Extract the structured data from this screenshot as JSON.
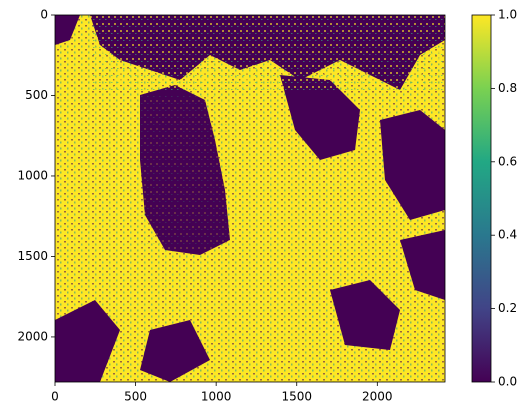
{
  "chart_data": {
    "type": "image",
    "xlim": [
      0,
      2420
    ],
    "xticks": [
      0,
      500,
      1000,
      1500,
      2000
    ],
    "ylim": [
      2280,
      0
    ],
    "yticks": [
      0,
      500,
      1000,
      1500,
      2000
    ],
    "colormap": "viridis",
    "colorbar": {
      "lim": [
        0,
        1
      ],
      "ticks": [
        {
          "value": 0,
          "label": "0.0"
        },
        {
          "value": 0.2,
          "label": "0.2"
        },
        {
          "value": 0.4,
          "label": "0.4"
        },
        {
          "value": 0.6,
          "label": "0.6"
        },
        {
          "value": 0.8,
          "label": "0.8"
        },
        {
          "value": 1,
          "label": "1.0"
        }
      ]
    }
  }
}
